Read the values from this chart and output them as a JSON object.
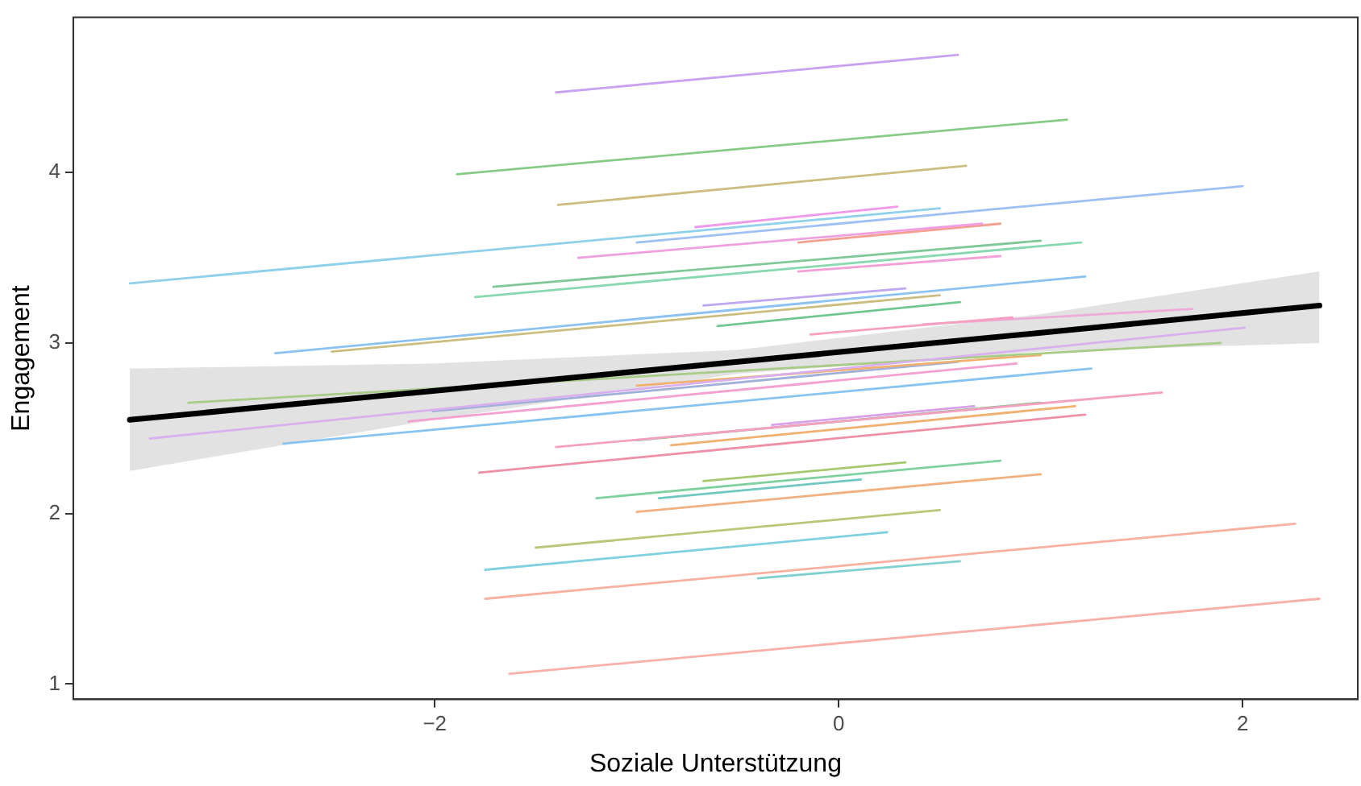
{
  "chart_data": {
    "type": "line",
    "xlabel": "Soziale Unterstützung",
    "ylabel": "Engagement",
    "xlim": [
      -3.79,
      2.57
    ],
    "ylim": [
      0.91,
      4.91
    ],
    "xticks": [
      -2,
      0,
      2
    ],
    "yticks": [
      1,
      2,
      3,
      4
    ],
    "grid": false,
    "legend": false,
    "marker": "none",
    "line_style": "solid",
    "series": [
      {
        "color": "#c9a3f2",
        "x": [
          -1.4,
          0.59
        ],
        "values": [
          4.47,
          4.69
        ]
      },
      {
        "color": "#86cc86",
        "x": [
          -1.89,
          1.13
        ],
        "values": [
          3.99,
          4.31
        ]
      },
      {
        "color": "#cdbd80",
        "x": [
          -1.39,
          0.63
        ],
        "values": [
          3.81,
          4.04
        ]
      },
      {
        "color": "#ee9ae8",
        "x": [
          -0.71,
          0.29
        ],
        "values": [
          3.68,
          3.8
        ]
      },
      {
        "color": "#8fd0ea",
        "x": [
          -3.51,
          0.5
        ],
        "values": [
          3.35,
          3.79
        ]
      },
      {
        "color": "#9fc0f5",
        "x": [
          -1.0,
          2.0
        ],
        "values": [
          3.59,
          3.92
        ]
      },
      {
        "color": "#f0a0e0",
        "x": [
          -1.29,
          0.71
        ],
        "values": [
          3.5,
          3.7
        ]
      },
      {
        "color": "#f4a090",
        "x": [
          -0.2,
          0.8
        ],
        "values": [
          3.59,
          3.7
        ]
      },
      {
        "color": "#80c898",
        "x": [
          -1.71,
          1.0
        ],
        "values": [
          3.33,
          3.6
        ]
      },
      {
        "color": "#88d8b0",
        "x": [
          -1.8,
          1.2
        ],
        "values": [
          3.27,
          3.59
        ]
      },
      {
        "color": "#f2a0d6",
        "x": [
          -0.2,
          0.8
        ],
        "values": [
          3.42,
          3.51
        ]
      },
      {
        "color": "#c0a8f0",
        "x": [
          -0.67,
          0.33
        ],
        "values": [
          3.22,
          3.32
        ]
      },
      {
        "color": "#ccbe80",
        "x": [
          -2.51,
          0.5
        ],
        "values": [
          2.95,
          3.28
        ]
      },
      {
        "color": "#8cc2f2",
        "x": [
          -2.79,
          1.22
        ],
        "values": [
          2.94,
          3.39
        ]
      },
      {
        "color": "#70c890",
        "x": [
          -0.6,
          0.6
        ],
        "values": [
          3.1,
          3.24
        ]
      },
      {
        "color": "#f5a0c0",
        "x": [
          -0.14,
          0.86
        ],
        "values": [
          3.05,
          3.15
        ]
      },
      {
        "color": "#eeaad8",
        "x": [
          0.42,
          1.75
        ],
        "values": [
          3.11,
          3.2
        ]
      },
      {
        "color": "#d8b0ee",
        "x": [
          -3.41,
          2.01
        ],
        "values": [
          2.44,
          3.09
        ]
      },
      {
        "color": "#a8cc88",
        "x": [
          -3.22,
          1.89
        ],
        "values": [
          2.65,
          3.0
        ]
      },
      {
        "color": "#88c4f2",
        "x": [
          -2.75,
          1.25
        ],
        "values": [
          2.41,
          2.85
        ]
      },
      {
        "color": "#f0b070",
        "x": [
          -1.0,
          1.0
        ],
        "values": [
          2.75,
          2.93
        ]
      },
      {
        "color": "#f4a0d0",
        "x": [
          -2.13,
          0.88
        ],
        "values": [
          2.54,
          2.88
        ]
      },
      {
        "color": "#a0b0d8",
        "x": [
          -2.01,
          0.59
        ],
        "values": [
          2.6,
          2.89
        ]
      },
      {
        "color": "#f4a0c0",
        "x": [
          -1.4,
          1.6
        ],
        "values": [
          2.39,
          2.71
        ]
      },
      {
        "color": "#80c080",
        "x": [
          -1.0,
          1.0
        ],
        "values": [
          2.43,
          2.65
        ]
      },
      {
        "color": "#d8a0e8",
        "x": [
          -0.33,
          0.67
        ],
        "values": [
          2.52,
          2.63
        ]
      },
      {
        "color": "#f0b070",
        "x": [
          -0.83,
          1.17
        ],
        "values": [
          2.4,
          2.63
        ]
      },
      {
        "color": "#ee90a8",
        "x": [
          -1.78,
          1.22
        ],
        "values": [
          2.24,
          2.58
        ]
      },
      {
        "color": "#a8c870",
        "x": [
          -0.67,
          0.33
        ],
        "values": [
          2.19,
          2.3
        ]
      },
      {
        "color": "#80d0a0",
        "x": [
          -1.2,
          0.8
        ],
        "values": [
          2.09,
          2.31
        ]
      },
      {
        "color": "#70c8c0",
        "x": [
          -0.89,
          0.11
        ],
        "values": [
          2.09,
          2.2
        ]
      },
      {
        "color": "#f0b080",
        "x": [
          -1.0,
          1.0
        ],
        "values": [
          2.01,
          2.23
        ]
      },
      {
        "color": "#b8c878",
        "x": [
          -1.5,
          0.5
        ],
        "values": [
          1.8,
          2.02
        ]
      },
      {
        "color": "#80d0e0",
        "x": [
          -1.75,
          0.24
        ],
        "values": [
          1.67,
          1.89
        ]
      },
      {
        "color": "#f8b0a0",
        "x": [
          -1.75,
          2.26
        ],
        "values": [
          1.5,
          1.94
        ]
      },
      {
        "color": "#80d0d0",
        "x": [
          -0.4,
          0.6
        ],
        "values": [
          1.62,
          1.72
        ]
      },
      {
        "color": "#f8b0a8",
        "x": [
          -1.63,
          2.38
        ],
        "values": [
          1.06,
          1.5
        ]
      },
      {
        "color": "#000000",
        "x": [
          -3.51,
          -2,
          -0.5,
          1,
          2.38
        ],
        "values": [
          2.55,
          2.72,
          2.89,
          3.06,
          3.22
        ],
        "lower": [
          2.25,
          2.55,
          2.82,
          2.95,
          3.0
        ],
        "upper": [
          2.85,
          2.88,
          2.96,
          3.17,
          3.42
        ]
      }
    ]
  }
}
